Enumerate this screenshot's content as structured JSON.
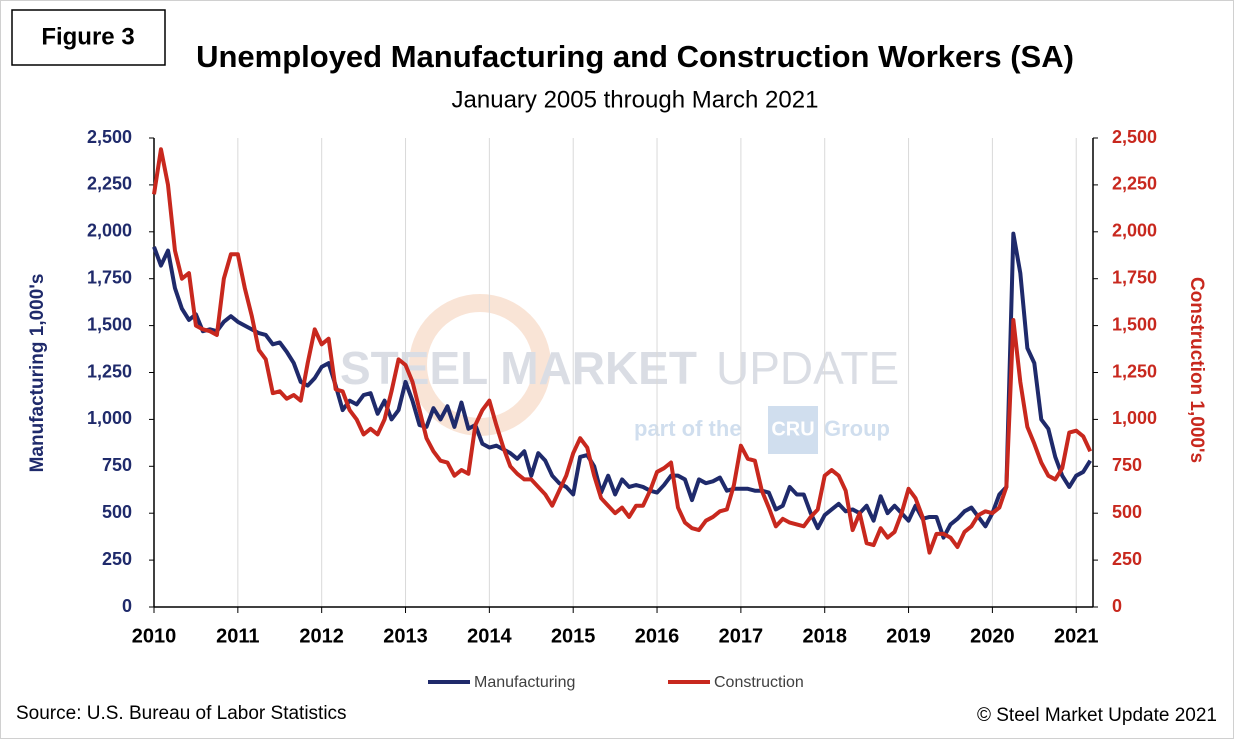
{
  "figure_label": "Figure 3",
  "chart_data": {
    "type": "line",
    "title": "Unemployed Manufacturing and Construction Workers (SA)",
    "subtitle": "January 2005 through March 2021",
    "y_label": "Manufacturing 1,000's",
    "y2_label": "Construction 1,000's",
    "watermark": {
      "brand": "STEEL MARKET",
      "brand2": "UPDATE",
      "part": "part of the",
      "cru": "CRU",
      "group": "Group"
    },
    "source": "Source: U.S. Bureau  of Labor Statistics",
    "copyright": "© Steel Market Update 2021",
    "legend": "bottom",
    "grid": true,
    "xlim": [
      2010,
      2021.2
    ],
    "xticks": [
      2010,
      2011,
      2012,
      2013,
      2014,
      2015,
      2016,
      2017,
      2018,
      2019,
      2020,
      2021
    ],
    "ylim": [
      0,
      2500
    ],
    "yticks": [
      0,
      250,
      500,
      750,
      {
        "value": 1000,
        "label": "1,000"
      },
      {
        "value": 1250,
        "label": "1,250"
      },
      {
        "value": 1500,
        "label": "1,500"
      },
      {
        "value": 1750,
        "label": "1,750"
      },
      {
        "value": 2000,
        "label": "2,000"
      },
      {
        "value": 2250,
        "label": "2,250"
      },
      {
        "value": 2500,
        "label": "2,500"
      }
    ],
    "y2lim": [
      0,
      2500
    ],
    "y2ticks": [
      0,
      250,
      500,
      750,
      {
        "value": 1000,
        "label": "1,000"
      },
      {
        "value": 1250,
        "label": "1,250"
      },
      {
        "value": 1500,
        "label": "1,500"
      },
      {
        "value": 1750,
        "label": "1,750"
      },
      {
        "value": 2000,
        "label": "2,000"
      },
      {
        "value": 2250,
        "label": "2,250"
      },
      {
        "value": 2500,
        "label": "2,500"
      }
    ],
    "x": [
      2010,
      2010.083,
      2010.167,
      2010.25,
      2010.333,
      2010.417,
      2010.5,
      2010.583,
      2010.667,
      2010.75,
      2010.833,
      2010.917,
      2011,
      2011.083,
      2011.167,
      2011.25,
      2011.333,
      2011.417,
      2011.5,
      2011.583,
      2011.667,
      2011.75,
      2011.833,
      2011.917,
      2012,
      2012.083,
      2012.167,
      2012.25,
      2012.333,
      2012.417,
      2012.5,
      2012.583,
      2012.667,
      2012.75,
      2012.833,
      2012.917,
      2013,
      2013.083,
      2013.167,
      2013.25,
      2013.333,
      2013.417,
      2013.5,
      2013.583,
      2013.667,
      2013.75,
      2013.833,
      2013.917,
      2014,
      2014.083,
      2014.167,
      2014.25,
      2014.333,
      2014.417,
      2014.5,
      2014.583,
      2014.667,
      2014.75,
      2014.833,
      2014.917,
      2015,
      2015.083,
      2015.167,
      2015.25,
      2015.333,
      2015.417,
      2015.5,
      2015.583,
      2015.667,
      2015.75,
      2015.833,
      2015.917,
      2016,
      2016.083,
      2016.167,
      2016.25,
      2016.333,
      2016.417,
      2016.5,
      2016.583,
      2016.667,
      2016.75,
      2016.833,
      2016.917,
      2017,
      2017.083,
      2017.167,
      2017.25,
      2017.333,
      2017.417,
      2017.5,
      2017.583,
      2017.667,
      2017.75,
      2017.833,
      2017.917,
      2018,
      2018.083,
      2018.167,
      2018.25,
      2018.333,
      2018.417,
      2018.5,
      2018.583,
      2018.667,
      2018.75,
      2018.833,
      2018.917,
      2019,
      2019.083,
      2019.167,
      2019.25,
      2019.333,
      2019.417,
      2019.5,
      2019.583,
      2019.667,
      2019.75,
      2019.833,
      2019.917,
      2020,
      2020.083,
      2020.167,
      2020.25,
      2020.333,
      2020.417,
      2020.5,
      2020.583,
      2020.667,
      2020.75,
      2020.833,
      2020.917,
      2021,
      2021.083,
      2021.167
    ],
    "series": [
      {
        "name": "Manufacturing",
        "color": "#1f2a6b",
        "axis": "y",
        "values": [
          1920,
          1820,
          1900,
          1700,
          1590,
          1530,
          1560,
          1470,
          1480,
          1470,
          1520,
          1550,
          1520,
          1500,
          1480,
          1460,
          1450,
          1400,
          1410,
          1360,
          1300,
          1200,
          1180,
          1220,
          1280,
          1300,
          1180,
          1050,
          1100,
          1080,
          1130,
          1140,
          1030,
          1100,
          1000,
          1050,
          1200,
          1100,
          970,
          960,
          1060,
          1000,
          1070,
          960,
          1090,
          950,
          970,
          870,
          850,
          860,
          840,
          820,
          790,
          830,
          700,
          820,
          780,
          700,
          660,
          640,
          600,
          800,
          810,
          750,
          610,
          700,
          600,
          680,
          640,
          650,
          640,
          620,
          610,
          650,
          700,
          700,
          680,
          570,
          680,
          660,
          670,
          690,
          620,
          630,
          630,
          630,
          620,
          620,
          610,
          520,
          540,
          640,
          600,
          600,
          500,
          420,
          490,
          520,
          550,
          510,
          520,
          500,
          540,
          460,
          590,
          500,
          540,
          500,
          460,
          540,
          470,
          480,
          480,
          370,
          440,
          470,
          510,
          530,
          480,
          430,
          500,
          600,
          640,
          1990,
          1780,
          1380,
          1300,
          1000,
          950,
          800,
          700,
          640,
          700,
          720,
          780
        ]
      },
      {
        "name": "Construction",
        "color": "#c8281e",
        "axis": "y2",
        "values": [
          2200,
          2440,
          2250,
          1900,
          1750,
          1780,
          1500,
          1480,
          1470,
          1450,
          1750,
          1880,
          1880,
          1700,
          1550,
          1370,
          1320,
          1140,
          1150,
          1110,
          1130,
          1100,
          1300,
          1480,
          1400,
          1430,
          1160,
          1150,
          1050,
          1000,
          920,
          950,
          920,
          1000,
          1150,
          1320,
          1290,
          1200,
          1050,
          900,
          830,
          780,
          770,
          700,
          730,
          710,
          970,
          1050,
          1100,
          970,
          850,
          750,
          710,
          680,
          680,
          640,
          600,
          540,
          620,
          700,
          820,
          900,
          850,
          700,
          580,
          540,
          500,
          530,
          480,
          540,
          540,
          620,
          720,
          740,
          770,
          530,
          450,
          420,
          410,
          460,
          480,
          510,
          520,
          650,
          860,
          790,
          780,
          620,
          530,
          430,
          470,
          450,
          440,
          430,
          480,
          520,
          700,
          730,
          700,
          620,
          410,
          500,
          340,
          330,
          420,
          370,
          400,
          500,
          630,
          580,
          480,
          290,
          390,
          390,
          370,
          320,
          400,
          430,
          490,
          510,
          500,
          530,
          640,
          1530,
          1200,
          960,
          870,
          770,
          700,
          680,
          740,
          930,
          940,
          910,
          830
        ]
      }
    ]
  }
}
